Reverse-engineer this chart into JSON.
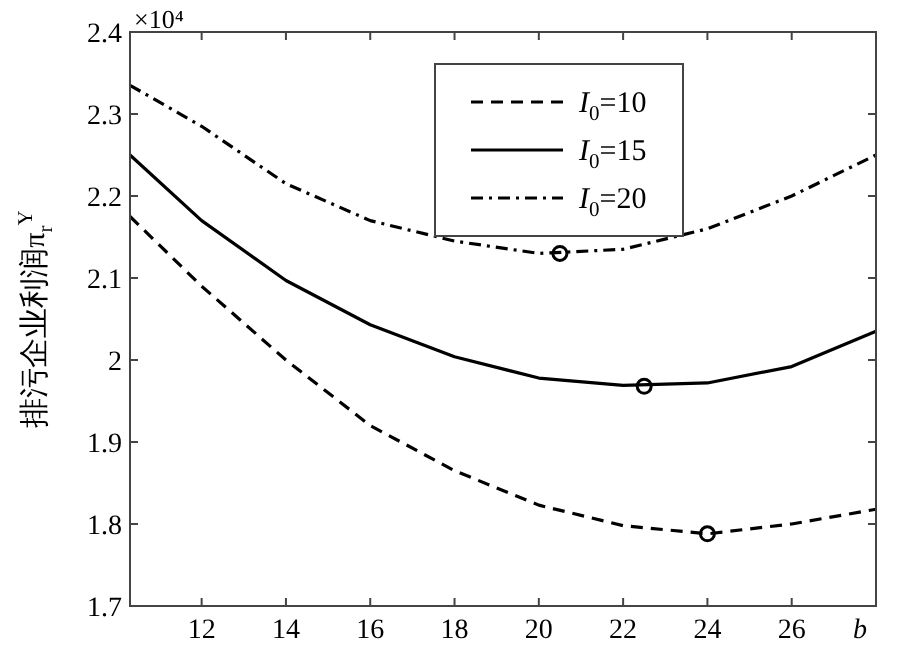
{
  "chart_data": {
    "type": "line",
    "xlabel": "b",
    "ylabel": "排污企业利润π$_{r}$$^{Y}$",
    "annotations": [
      "×10⁴"
    ],
    "xlim": [
      10.3,
      28
    ],
    "xticks": [
      12,
      14,
      16,
      18,
      20,
      22,
      24,
      26
    ],
    "ylim": [
      1.7,
      2.4
    ],
    "yticks": [
      1.7,
      1.8,
      1.9,
      2,
      2.1,
      2.2,
      2.3,
      2.4
    ],
    "grid": false,
    "legend": "top",
    "marker": "none",
    "series": [
      {
        "name": "I$_{0}$=10",
        "color": "#000000",
        "line_style": "dashed",
        "x": [
          10.3,
          12,
          14,
          16,
          18,
          20,
          22,
          24,
          26,
          28
        ],
        "values": [
          2.175,
          2.09,
          2.0,
          1.92,
          1.865,
          1.823,
          1.798,
          1.788,
          1.8,
          1.818
        ]
      },
      {
        "name": "I$_{0}$=15",
        "color": "#000000",
        "line_style": "solid",
        "x": [
          10.3,
          12,
          14,
          16,
          18,
          20,
          22,
          24,
          26,
          28
        ],
        "values": [
          2.25,
          2.17,
          2.097,
          2.043,
          2.004,
          1.978,
          1.969,
          1.972,
          1.992,
          2.035
        ]
      },
      {
        "name": "I$_{0}$=20",
        "color": "#000000",
        "line_style": "dashdot",
        "x": [
          10.3,
          12,
          14,
          16,
          18,
          20,
          22,
          24,
          26,
          28
        ],
        "values": [
          2.335,
          2.285,
          2.215,
          2.17,
          2.145,
          2.13,
          2.135,
          2.16,
          2.2,
          2.25
        ]
      },
      {
        "type": "scatter",
        "marker": "circle",
        "color": "#000000",
        "x": [
          24,
          22.5,
          20.5
        ],
        "values": [
          1.788,
          1.968,
          2.13
        ]
      }
    ]
  }
}
